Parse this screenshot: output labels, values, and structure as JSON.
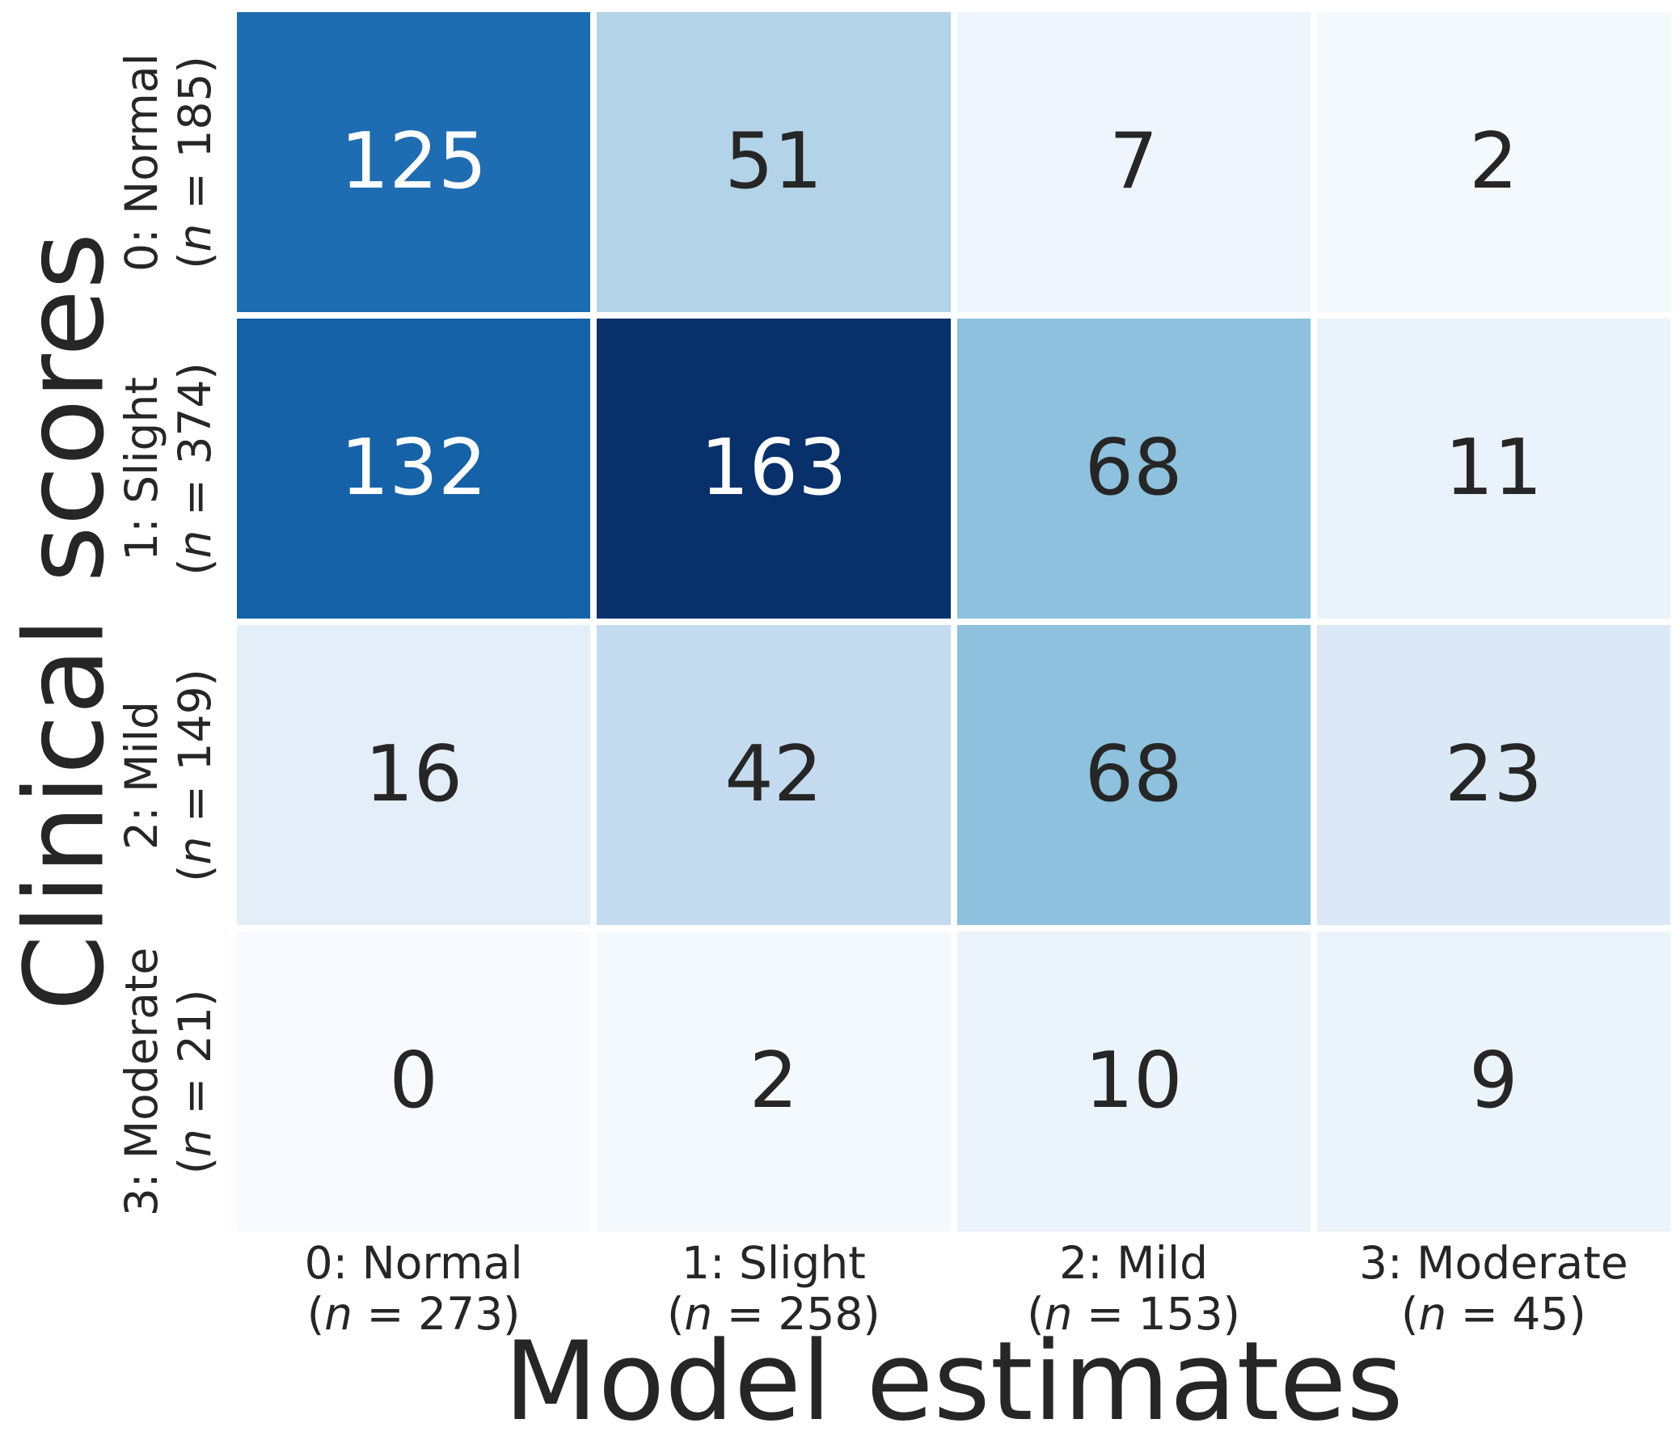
{
  "figure": {
    "background": "#ffffff"
  },
  "chart_data": {
    "type": "heatmap",
    "title": "",
    "xlabel": "Model estimates",
    "ylabel": "Clinical scores",
    "colormap": "Blues",
    "vmin": 0,
    "vmax": 163,
    "grid_line_color": "#ffffff",
    "annotation_text_dark": "#262626",
    "annotation_text_light": "#ffffff",
    "legend": "none",
    "n_format": {
      "open": "(",
      "var": "n",
      "eq": " = ",
      "close": ")"
    },
    "rows": [
      {
        "label": "0: Normal",
        "n": "185"
      },
      {
        "label": "1: Slight",
        "n": "374"
      },
      {
        "label": "2: Mild",
        "n": "149"
      },
      {
        "label": "3: Moderate",
        "n": "21"
      }
    ],
    "cols": [
      {
        "label": "0: Normal",
        "n": "273"
      },
      {
        "label": "1: Slight",
        "n": "258"
      },
      {
        "label": "2: Mild",
        "n": "153"
      },
      {
        "label": "3: Moderate",
        "n": "45"
      }
    ],
    "values": [
      [
        125,
        51,
        7,
        2
      ],
      [
        132,
        163,
        68,
        11
      ],
      [
        16,
        42,
        68,
        23
      ],
      [
        0,
        2,
        10,
        9
      ]
    ],
    "cell_colors": [
      [
        "#1e6db2",
        "#b2d3e8",
        "#eef5fc",
        "#f4f9fe"
      ],
      [
        "#1562a9",
        "#08306b",
        "#8dc1dd",
        "#eaf2fb"
      ],
      [
        "#e3eef9",
        "#c4daee",
        "#8dc1dd",
        "#dbe9f6"
      ],
      [
        "#f7fbff",
        "#f4f9fe",
        "#ebf3fb",
        "#ecf4fb"
      ]
    ],
    "text_colors": [
      [
        "#ffffff",
        "#262626",
        "#262626",
        "#262626"
      ],
      [
        "#ffffff",
        "#ffffff",
        "#262626",
        "#262626"
      ],
      [
        "#262626",
        "#262626",
        "#262626",
        "#262626"
      ],
      [
        "#262626",
        "#262626",
        "#262626",
        "#262626"
      ]
    ]
  }
}
